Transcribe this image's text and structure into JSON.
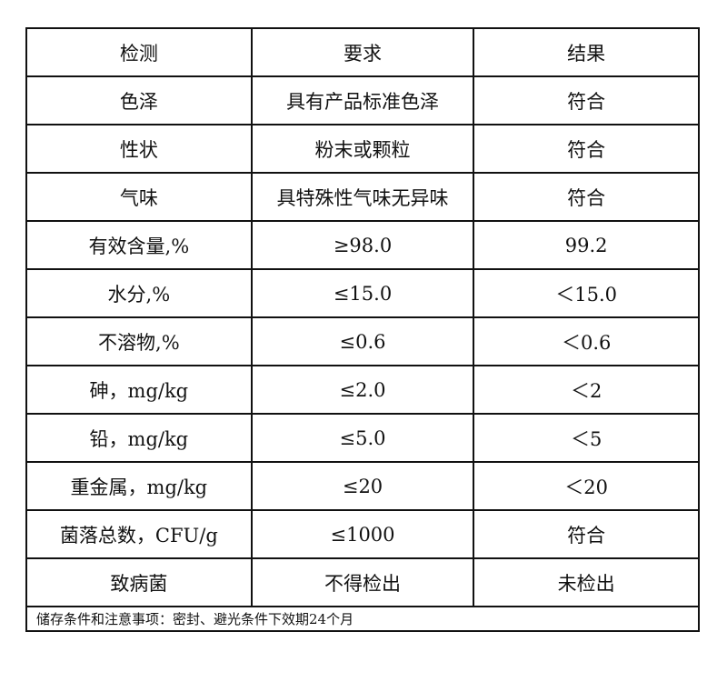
{
  "header": [
    "检测",
    "要求",
    "结果"
  ],
  "rows": [
    [
      "色泽",
      "具有产品标准色泽",
      "符合"
    ],
    [
      "性状",
      "粉末或颗粒",
      "符合"
    ],
    [
      "气味",
      "具特殊性气味无异味",
      "符合"
    ],
    [
      "有效含量,%",
      "≥98.0",
      "99.2"
    ],
    [
      "水分,%",
      "≤15.0",
      "＜15.0"
    ],
    [
      "不溶物,%",
      "≤0.6",
      "＜0.6"
    ],
    [
      "砷，mg/kg",
      "≤2.0",
      "＜2"
    ],
    [
      "铅，mg/kg",
      "≤5.0",
      "＜5"
    ],
    [
      "重金属，mg/kg",
      "≤20",
      "＜20"
    ],
    [
      "菌落总数，CFU/g",
      "≤1000",
      "符合"
    ],
    [
      "致病菌",
      "不得检出",
      "未检出"
    ]
  ],
  "footer": "储存条件和注意事项：密封、避光条件下效期24个月"
}
